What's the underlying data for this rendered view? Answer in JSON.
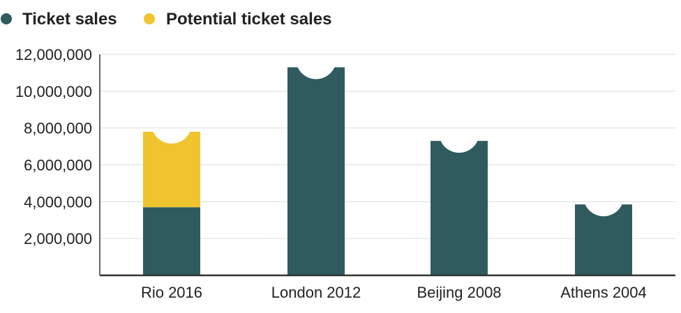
{
  "legend": {
    "items": [
      {
        "label": "Ticket sales",
        "color": "#2f5b5f"
      },
      {
        "label": "Potential ticket sales",
        "color": "#f0c42e"
      }
    ]
  },
  "chart_data": {
    "type": "bar",
    "stacked": true,
    "categories": [
      "Rio 2016",
      "London 2012",
      "Beijing 2008",
      "Athens 2004"
    ],
    "series": [
      {
        "name": "Ticket sales",
        "color": "#2f5b5f",
        "values": [
          3700000,
          11300000,
          7300000,
          3850000
        ]
      },
      {
        "name": "Potential ticket sales",
        "color": "#f0c42e",
        "values": [
          4100000,
          0,
          0,
          0
        ]
      }
    ],
    "ylim": [
      0,
      12000000
    ],
    "yticks": [
      2000000,
      4000000,
      6000000,
      8000000,
      10000000,
      12000000
    ],
    "ytick_labels": [
      "2,000,000",
      "4,000,000",
      "6,000,000",
      "8,000,000",
      "10,000,000",
      "12,000,000"
    ],
    "grid": true,
    "legend_position": "top-left",
    "title": "",
    "xlabel": "",
    "ylabel": ""
  }
}
